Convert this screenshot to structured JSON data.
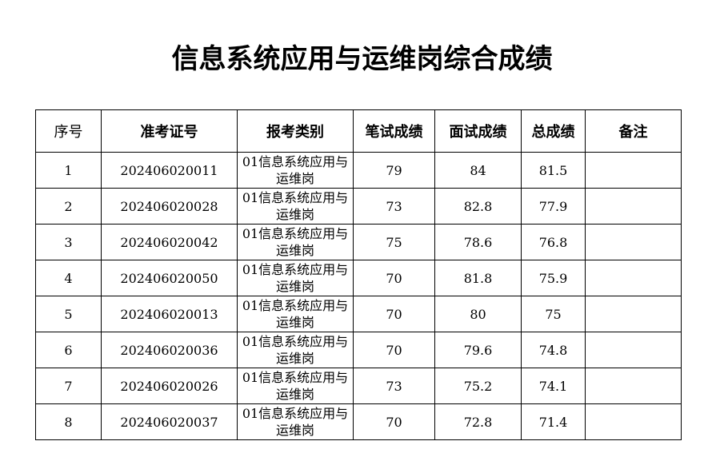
{
  "title": "信息系统应用与运维岗综合成绩",
  "table": {
    "headers": [
      "序号",
      "准考证号",
      "报考类别",
      "笔试成绩",
      "面试成绩",
      "总成绩",
      "备注"
    ],
    "rows": [
      {
        "no": "1",
        "id": "202406020011",
        "category": "01信息系统应用与运维岗",
        "written": "79",
        "interview": "84",
        "total": "81.5",
        "remark": ""
      },
      {
        "no": "2",
        "id": "202406020028",
        "category": "01信息系统应用与运维岗",
        "written": "73",
        "interview": "82.8",
        "total": "77.9",
        "remark": ""
      },
      {
        "no": "3",
        "id": "202406020042",
        "category": "01信息系统应用与运维岗",
        "written": "75",
        "interview": "78.6",
        "total": "76.8",
        "remark": ""
      },
      {
        "no": "4",
        "id": "202406020050",
        "category": "01信息系统应用与运维岗",
        "written": "70",
        "interview": "81.8",
        "total": "75.9",
        "remark": ""
      },
      {
        "no": "5",
        "id": "202406020013",
        "category": "01信息系统应用与运维岗",
        "written": "70",
        "interview": "80",
        "total": "75",
        "remark": ""
      },
      {
        "no": "6",
        "id": "202406020036",
        "category": "01信息系统应用与运维岗",
        "written": "70",
        "interview": "79.6",
        "total": "74.8",
        "remark": ""
      },
      {
        "no": "7",
        "id": "202406020026",
        "category": "01信息系统应用与运维岗",
        "written": "73",
        "interview": "75.2",
        "total": "74.1",
        "remark": ""
      },
      {
        "no": "8",
        "id": "202406020037",
        "category": "01信息系统应用与运维岗",
        "written": "70",
        "interview": "72.8",
        "total": "71.4",
        "remark": ""
      }
    ]
  }
}
